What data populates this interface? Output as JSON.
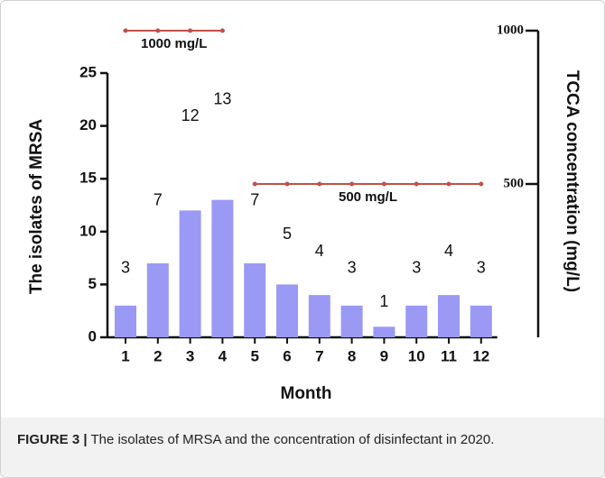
{
  "chart_data": {
    "type": "bar",
    "xlabel": "Month",
    "ylabel": "The isolates of MRSA",
    "y2label": "TCCA concentration (mg/L)",
    "categories": [
      "1",
      "2",
      "3",
      "4",
      "5",
      "6",
      "7",
      "8",
      "9",
      "10",
      "11",
      "12"
    ],
    "values": [
      3,
      7,
      12,
      13,
      7,
      5,
      4,
      3,
      1,
      3,
      4,
      3
    ],
    "color": "#9a9af5",
    "ylim": [
      0,
      25
    ],
    "yticks": [
      0,
      5,
      10,
      15,
      20,
      25
    ],
    "y2lim": [
      0,
      1000
    ],
    "y2ticks": [
      500,
      1000
    ],
    "series": [
      {
        "name": "1000 mg/L",
        "color": "#c0504d",
        "axis": "y2",
        "values": [
          1000,
          1000,
          1000,
          1000,
          null,
          null,
          null,
          null,
          null,
          null,
          null,
          null
        ]
      },
      {
        "name": "500 mg/L",
        "color": "#c0504d",
        "axis": "y2",
        "values": [
          null,
          null,
          null,
          null,
          500,
          500,
          500,
          500,
          500,
          500,
          500,
          500
        ]
      }
    ]
  },
  "caption": {
    "label": "FIGURE 3 |",
    "text": "The isolates of MRSA and the concentration of disinfectant in 2020."
  }
}
